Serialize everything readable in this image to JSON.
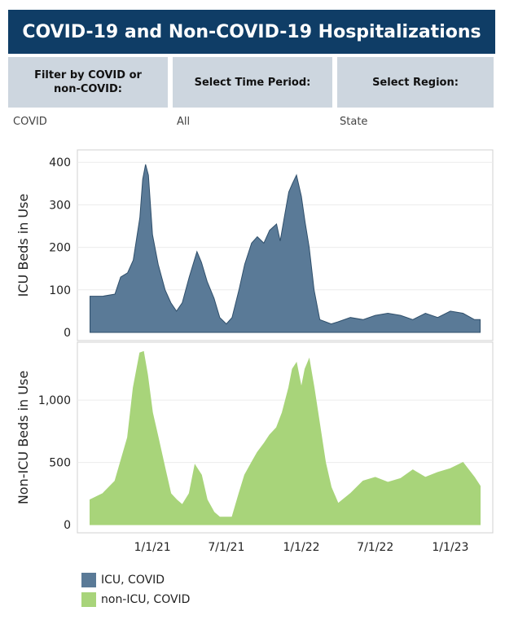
{
  "header": {
    "title": "COVID-19 and Non-COVID-19 Hospitalizations"
  },
  "filters": [
    {
      "label": "Filter by COVID or non-COVID:",
      "value": "COVID"
    },
    {
      "label": "Select Time Period:",
      "value": "All"
    },
    {
      "label": "Select Region:",
      "value": "State"
    }
  ],
  "colors": {
    "header": "#0f3d66",
    "filter_bg": "#cdd6df",
    "icu": "#5a7a97",
    "non_icu": "#a8d47a"
  },
  "chart_data": [
    {
      "type": "area",
      "name": "icu",
      "ylabel": "ICU Beds in Use",
      "ylim": [
        0,
        410
      ],
      "yticks": [
        0,
        100,
        200,
        300,
        400
      ],
      "ytick_labels": [
        "0",
        "100",
        "200",
        "300",
        "400"
      ],
      "grid": true,
      "x": [
        "2020-08-01",
        "2020-09-01",
        "2020-10-01",
        "2020-10-15",
        "2020-11-01",
        "2020-11-15",
        "2020-12-01",
        "2020-12-08",
        "2020-12-15",
        "2020-12-22",
        "2021-01-01",
        "2021-01-15",
        "2021-02-01",
        "2021-02-15",
        "2021-03-01",
        "2021-03-15",
        "2021-04-01",
        "2021-04-20",
        "2021-05-01",
        "2021-05-15",
        "2021-06-01",
        "2021-06-15",
        "2021-07-01",
        "2021-07-15",
        "2021-08-01",
        "2021-08-15",
        "2021-09-01",
        "2021-09-15",
        "2021-10-01",
        "2021-10-15",
        "2021-11-01",
        "2021-11-10",
        "2021-11-20",
        "2021-12-01",
        "2021-12-10",
        "2021-12-20",
        "2022-01-01",
        "2022-01-10",
        "2022-01-20",
        "2022-02-01",
        "2022-02-15",
        "2022-03-01",
        "2022-03-15",
        "2022-04-01",
        "2022-05-01",
        "2022-06-01",
        "2022-07-01",
        "2022-08-01",
        "2022-09-01",
        "2022-10-01",
        "2022-11-01",
        "2022-12-01",
        "2023-01-01",
        "2023-02-01",
        "2023-03-01",
        "2023-03-15"
      ],
      "series": [
        {
          "name": "ICU, COVID",
          "color": "#5a7a97",
          "values": [
            85,
            85,
            90,
            130,
            140,
            170,
            270,
            360,
            395,
            370,
            230,
            160,
            100,
            70,
            50,
            70,
            130,
            190,
            165,
            120,
            80,
            35,
            20,
            35,
            100,
            160,
            210,
            225,
            210,
            240,
            255,
            215,
            270,
            330,
            350,
            370,
            320,
            260,
            200,
            100,
            30,
            25,
            20,
            25,
            35,
            30,
            40,
            45,
            40,
            30,
            45,
            35,
            50,
            45,
            30,
            30
          ]
        }
      ]
    },
    {
      "type": "area",
      "name": "non-icu",
      "ylabel": "Non-ICU Beds in Use",
      "ylim": [
        0,
        1400
      ],
      "yticks": [
        0,
        500,
        1000
      ],
      "ytick_labels": [
        "0",
        "500",
        "1,000"
      ],
      "xtick_labels": [
        "1/1/21",
        "7/1/21",
        "1/1/22",
        "7/1/22",
        "1/1/23"
      ],
      "xticks": [
        "2021-01-01",
        "2021-07-01",
        "2022-01-01",
        "2022-07-01",
        "2023-01-01"
      ],
      "grid": true,
      "x": [
        "2020-08-01",
        "2020-09-01",
        "2020-10-01",
        "2020-11-01",
        "2020-11-15",
        "2020-12-01",
        "2020-12-10",
        "2020-12-20",
        "2021-01-01",
        "2021-01-15",
        "2021-02-01",
        "2021-02-15",
        "2021-03-01",
        "2021-03-15",
        "2021-04-01",
        "2021-04-15",
        "2021-05-01",
        "2021-05-15",
        "2021-06-01",
        "2021-06-15",
        "2021-07-01",
        "2021-07-15",
        "2021-08-01",
        "2021-08-15",
        "2021-09-01",
        "2021-09-15",
        "2021-10-01",
        "2021-10-15",
        "2021-11-01",
        "2021-11-15",
        "2021-12-01",
        "2021-12-10",
        "2021-12-20",
        "2022-01-01",
        "2022-01-10",
        "2022-01-20",
        "2022-02-01",
        "2022-02-15",
        "2022-03-01",
        "2022-03-15",
        "2022-04-01",
        "2022-05-01",
        "2022-06-01",
        "2022-07-01",
        "2022-08-01",
        "2022-09-01",
        "2022-10-01",
        "2022-11-01",
        "2022-12-01",
        "2023-01-01",
        "2023-02-01",
        "2023-03-01",
        "2023-03-15"
      ],
      "series": [
        {
          "name": "non-ICU, COVID",
          "color": "#a8d47a",
          "values": [
            200,
            250,
            350,
            700,
            1100,
            1380,
            1390,
            1200,
            900,
            700,
            450,
            250,
            200,
            160,
            250,
            480,
            400,
            200,
            100,
            60,
            60,
            60,
            250,
            400,
            500,
            580,
            650,
            720,
            780,
            900,
            1100,
            1250,
            1300,
            1100,
            1250,
            1330,
            1100,
            800,
            500,
            300,
            170,
            250,
            350,
            380,
            340,
            370,
            440,
            380,
            420,
            450,
            500,
            380,
            310
          ]
        }
      ]
    }
  ]
}
